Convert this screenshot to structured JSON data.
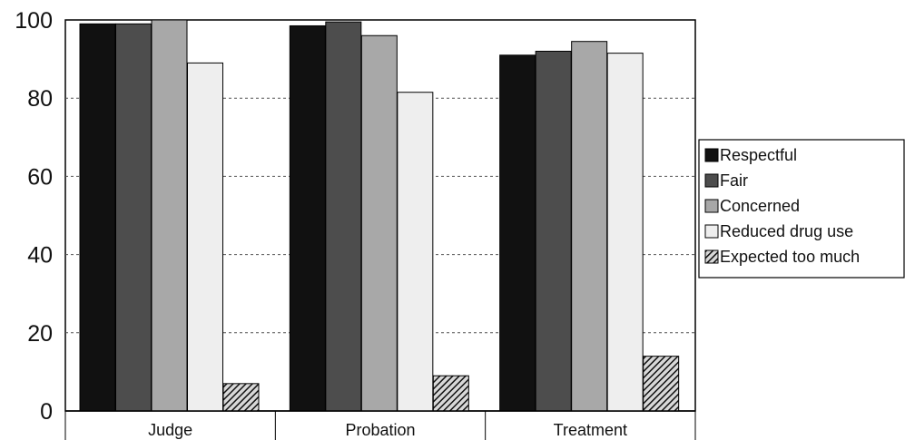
{
  "chart_data": {
    "type": "bar",
    "categories": [
      "Judge",
      "Probation",
      "Treatment"
    ],
    "series": [
      {
        "name": "Respectful",
        "values": [
          99,
          98.5,
          91
        ],
        "color": "#111111",
        "pattern": "solid"
      },
      {
        "name": "Fair",
        "values": [
          99,
          99.5,
          92
        ],
        "color": "#4d4d4d",
        "pattern": "solid"
      },
      {
        "name": "Concerned",
        "values": [
          100,
          96,
          94.5
        ],
        "color": "#a8a8a8",
        "pattern": "solid"
      },
      {
        "name": "Reduced drug use",
        "values": [
          89,
          81.5,
          91.5
        ],
        "color": "#eeeeee",
        "pattern": "solid"
      },
      {
        "name": "Expected too much",
        "values": [
          7,
          9,
          14
        ],
        "color": "#555555",
        "pattern": "hatch"
      }
    ],
    "title": "",
    "xlabel": "",
    "ylabel": "",
    "ylim": [
      0,
      100
    ],
    "yticks": [
      0,
      20,
      40,
      60,
      80,
      100
    ],
    "grid": true,
    "legend": "right"
  }
}
